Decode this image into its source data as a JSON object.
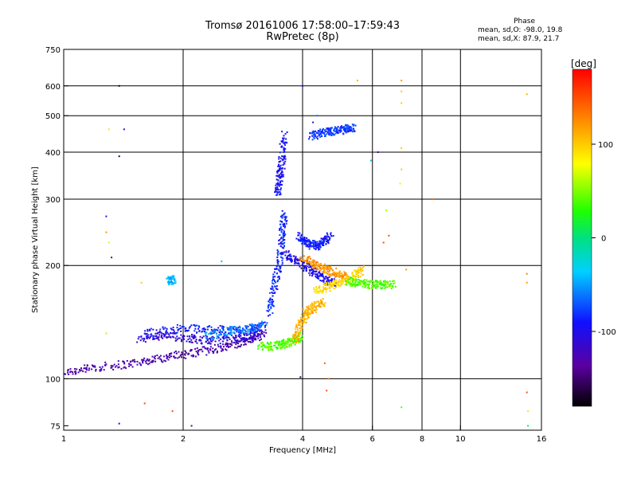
{
  "chart_data": {
    "type": "scatter",
    "title": "Tromsø 20161006 17:58:00–17:59:43",
    "subtitle": "RwPretec (8p)",
    "xlabel": "Frequency [MHz]",
    "ylabel": "Stationary phase Virtual Height [km]",
    "x_scale": "log",
    "y_scale": "log",
    "xlim": [
      1,
      16
    ],
    "ylim": [
      73,
      750
    ],
    "x_ticks": [
      1,
      2,
      4,
      6,
      8,
      10,
      16
    ],
    "x_tick_labels": [
      "1",
      "2",
      "4",
      "6",
      "8",
      "10",
      "16"
    ],
    "x_grid": [
      2,
      4,
      6,
      8,
      10
    ],
    "y_ticks": [
      75,
      100,
      200,
      300,
      400,
      500,
      600,
      750
    ],
    "y_tick_labels": [
      "75",
      "100",
      "200",
      "300",
      "400",
      "500",
      "600",
      "750"
    ],
    "y_grid": [
      100,
      200,
      300,
      400,
      500,
      600
    ],
    "grid": true,
    "phase_summary": {
      "heading": "Phase",
      "o_line": "mean, sd,O: -98.0, 19.8",
      "x_line": "mean, sd,X: 87.9, 21.7"
    },
    "colorbar": {
      "label": "[deg]",
      "range": [
        -180,
        180
      ],
      "ticks": [
        100,
        0,
        -100
      ],
      "tick_labels": [
        "100",
        "0",
        "-100"
      ]
    },
    "trace_segments": [
      {
        "comment_free": true,
        "phase": -130,
        "x": [
          1.0,
          1.2,
          1.5,
          1.8,
          2.1,
          2.5,
          2.9,
          3.2
        ],
        "y": [
          104,
          107,
          110,
          114,
          117,
          121,
          126,
          132
        ]
      },
      {
        "phase": -110,
        "x": [
          1.55,
          1.8,
          2.1,
          2.4,
          2.8,
          3.1
        ],
        "y": [
          128,
          130,
          128,
          126,
          128,
          131
        ]
      },
      {
        "phase": -90,
        "x": [
          1.6,
          2.0,
          2.4,
          2.9,
          3.2
        ],
        "y": [
          132,
          136,
          135,
          134,
          138
        ]
      },
      {
        "phase": -60,
        "x": [
          2.3,
          2.6,
          2.9,
          3.2
        ],
        "y": [
          130,
          134,
          135,
          139
        ]
      },
      {
        "phase": 40,
        "x": [
          3.1,
          3.4,
          3.6,
          3.8,
          3.95
        ],
        "y": [
          122,
          122,
          124,
          126,
          130
        ]
      },
      {
        "phase": -85,
        "x": [
          3.3,
          3.4,
          3.5,
          3.55,
          3.6
        ],
        "y": [
          150,
          175,
          205,
          240,
          275
        ]
      },
      {
        "phase": -95,
        "x": [
          3.45,
          3.5,
          3.55,
          3.6
        ],
        "y": [
          310,
          340,
          380,
          450
        ]
      },
      {
        "phase": -100,
        "x": [
          3.6,
          3.9,
          4.2,
          4.5,
          4.8
        ],
        "y": [
          215,
          205,
          195,
          185,
          180
        ]
      },
      {
        "phase": -90,
        "x": [
          3.9,
          4.1,
          4.3,
          4.5,
          4.7
        ],
        "y": [
          240,
          230,
          225,
          230,
          240
        ]
      },
      {
        "phase": 110,
        "x": [
          3.8,
          3.95,
          4.1,
          4.3,
          4.5
        ],
        "y": [
          125,
          140,
          150,
          155,
          160
        ]
      },
      {
        "phase": 120,
        "x": [
          4.0,
          4.3,
          4.6,
          4.9,
          5.2
        ],
        "y": [
          210,
          200,
          195,
          190,
          185
        ]
      },
      {
        "phase": 95,
        "x": [
          4.3,
          4.6,
          4.9,
          5.3,
          5.7
        ],
        "y": [
          170,
          175,
          180,
          185,
          195
        ]
      },
      {
        "phase": 40,
        "x": [
          5.2,
          5.5,
          5.9,
          6.3,
          6.8
        ],
        "y": [
          182,
          180,
          178,
          178,
          178
        ]
      },
      {
        "phase": -80,
        "x": [
          4.2,
          4.5,
          4.8,
          5.1,
          5.4
        ],
        "y": [
          440,
          450,
          455,
          460,
          465
        ]
      },
      {
        "phase": -40,
        "x": [
          1.85,
          1.88
        ],
        "y": [
          182,
          184
        ]
      }
    ],
    "scattered_points": [
      {
        "x": 1.38,
        "y": 600,
        "phase": -170
      },
      {
        "x": 1.38,
        "y": 390,
        "phase": -160
      },
      {
        "x": 1.28,
        "y": 270,
        "phase": -110
      },
      {
        "x": 1.32,
        "y": 210,
        "phase": -140
      },
      {
        "x": 1.42,
        "y": 460,
        "phase": -100
      },
      {
        "x": 1.3,
        "y": 460,
        "phase": 90
      },
      {
        "x": 1.28,
        "y": 245,
        "phase": 120
      },
      {
        "x": 1.3,
        "y": 230,
        "phase": 70
      },
      {
        "x": 1.57,
        "y": 180,
        "phase": 100
      },
      {
        "x": 1.28,
        "y": 132,
        "phase": 60
      },
      {
        "x": 1.6,
        "y": 86,
        "phase": 150
      },
      {
        "x": 1.88,
        "y": 82,
        "phase": 150
      },
      {
        "x": 1.38,
        "y": 76,
        "phase": -100
      },
      {
        "x": 2.1,
        "y": 75,
        "phase": -130
      },
      {
        "x": 2.5,
        "y": 205,
        "phase": -40
      },
      {
        "x": 4.0,
        "y": 600,
        "phase": -120
      },
      {
        "x": 4.25,
        "y": 480,
        "phase": -110
      },
      {
        "x": 4.35,
        "y": 500,
        "phase": -60
      },
      {
        "x": 5.5,
        "y": 620,
        "phase": 110
      },
      {
        "x": 5.95,
        "y": 380,
        "phase": -40
      },
      {
        "x": 6.2,
        "y": 400,
        "phase": -130
      },
      {
        "x": 7.1,
        "y": 620,
        "phase": 120
      },
      {
        "x": 7.1,
        "y": 580,
        "phase": 100
      },
      {
        "x": 7.1,
        "y": 540,
        "phase": 100
      },
      {
        "x": 7.1,
        "y": 410,
        "phase": 100
      },
      {
        "x": 7.1,
        "y": 360,
        "phase": 100
      },
      {
        "x": 7.05,
        "y": 330,
        "phase": 70
      },
      {
        "x": 6.5,
        "y": 280,
        "phase": 60
      },
      {
        "x": 6.6,
        "y": 240,
        "phase": 150
      },
      {
        "x": 6.4,
        "y": 230,
        "phase": 150
      },
      {
        "x": 7.3,
        "y": 195,
        "phase": 120
      },
      {
        "x": 8.5,
        "y": 300,
        "phase": 140
      },
      {
        "x": 7.1,
        "y": 84,
        "phase": 40
      },
      {
        "x": 4.65,
        "y": 100,
        "phase": 130
      },
      {
        "x": 4.6,
        "y": 93,
        "phase": 150
      },
      {
        "x": 4.55,
        "y": 110,
        "phase": 140
      },
      {
        "x": 3.95,
        "y": 101,
        "phase": -160
      },
      {
        "x": 14.7,
        "y": 570,
        "phase": 110
      },
      {
        "x": 14.7,
        "y": 190,
        "phase": 130
      },
      {
        "x": 14.7,
        "y": 180,
        "phase": 120
      },
      {
        "x": 14.7,
        "y": 92,
        "phase": 150
      },
      {
        "x": 14.8,
        "y": 82,
        "phase": 90
      },
      {
        "x": 14.8,
        "y": 75,
        "phase": 10
      }
    ]
  }
}
